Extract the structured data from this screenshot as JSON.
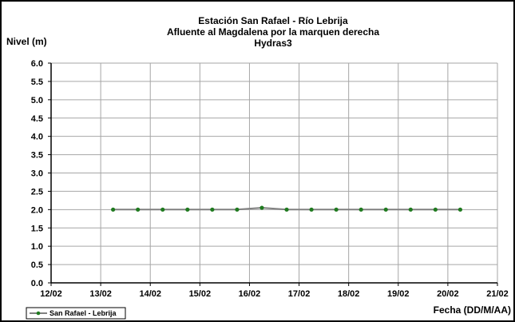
{
  "chart_data": {
    "type": "line",
    "title_lines": [
      "Estación San Rafael - Río Lebrija",
      "Afluente al Magdalena por la marquen derecha",
      "Hydras3"
    ],
    "ylabel": "Nivel (m)",
    "xlabel": "Fecha (DD/M/AA)",
    "ylim": [
      0.0,
      6.0
    ],
    "y_ticks": [
      "0.0",
      "0.5",
      "1.0",
      "1.5",
      "2.0",
      "2.5",
      "3.0",
      "3.5",
      "4.0",
      "4.5",
      "5.0",
      "5.5",
      "6.0"
    ],
    "xlim": [
      0,
      9
    ],
    "x_ticks": [
      "12/02",
      "13/02",
      "14/02",
      "15/02",
      "16/02",
      "17/02",
      "18/02",
      "19/02",
      "20/02",
      "21/02"
    ],
    "grid": true,
    "legend_position": "bottom-left",
    "series": [
      {
        "name": "San Rafael - Lebrija",
        "color": "#808080",
        "marker_color": "#1f7a1f",
        "x": [
          1.25,
          1.75,
          2.25,
          2.75,
          3.25,
          3.75,
          4.25,
          4.75,
          5.25,
          5.75,
          6.25,
          6.75,
          7.25,
          7.75,
          8.25
        ],
        "y": [
          2.0,
          2.0,
          2.0,
          2.0,
          2.0,
          2.0,
          2.05,
          2.0,
          2.0,
          2.0,
          2.0,
          2.0,
          2.0,
          2.0,
          2.0
        ]
      }
    ]
  }
}
